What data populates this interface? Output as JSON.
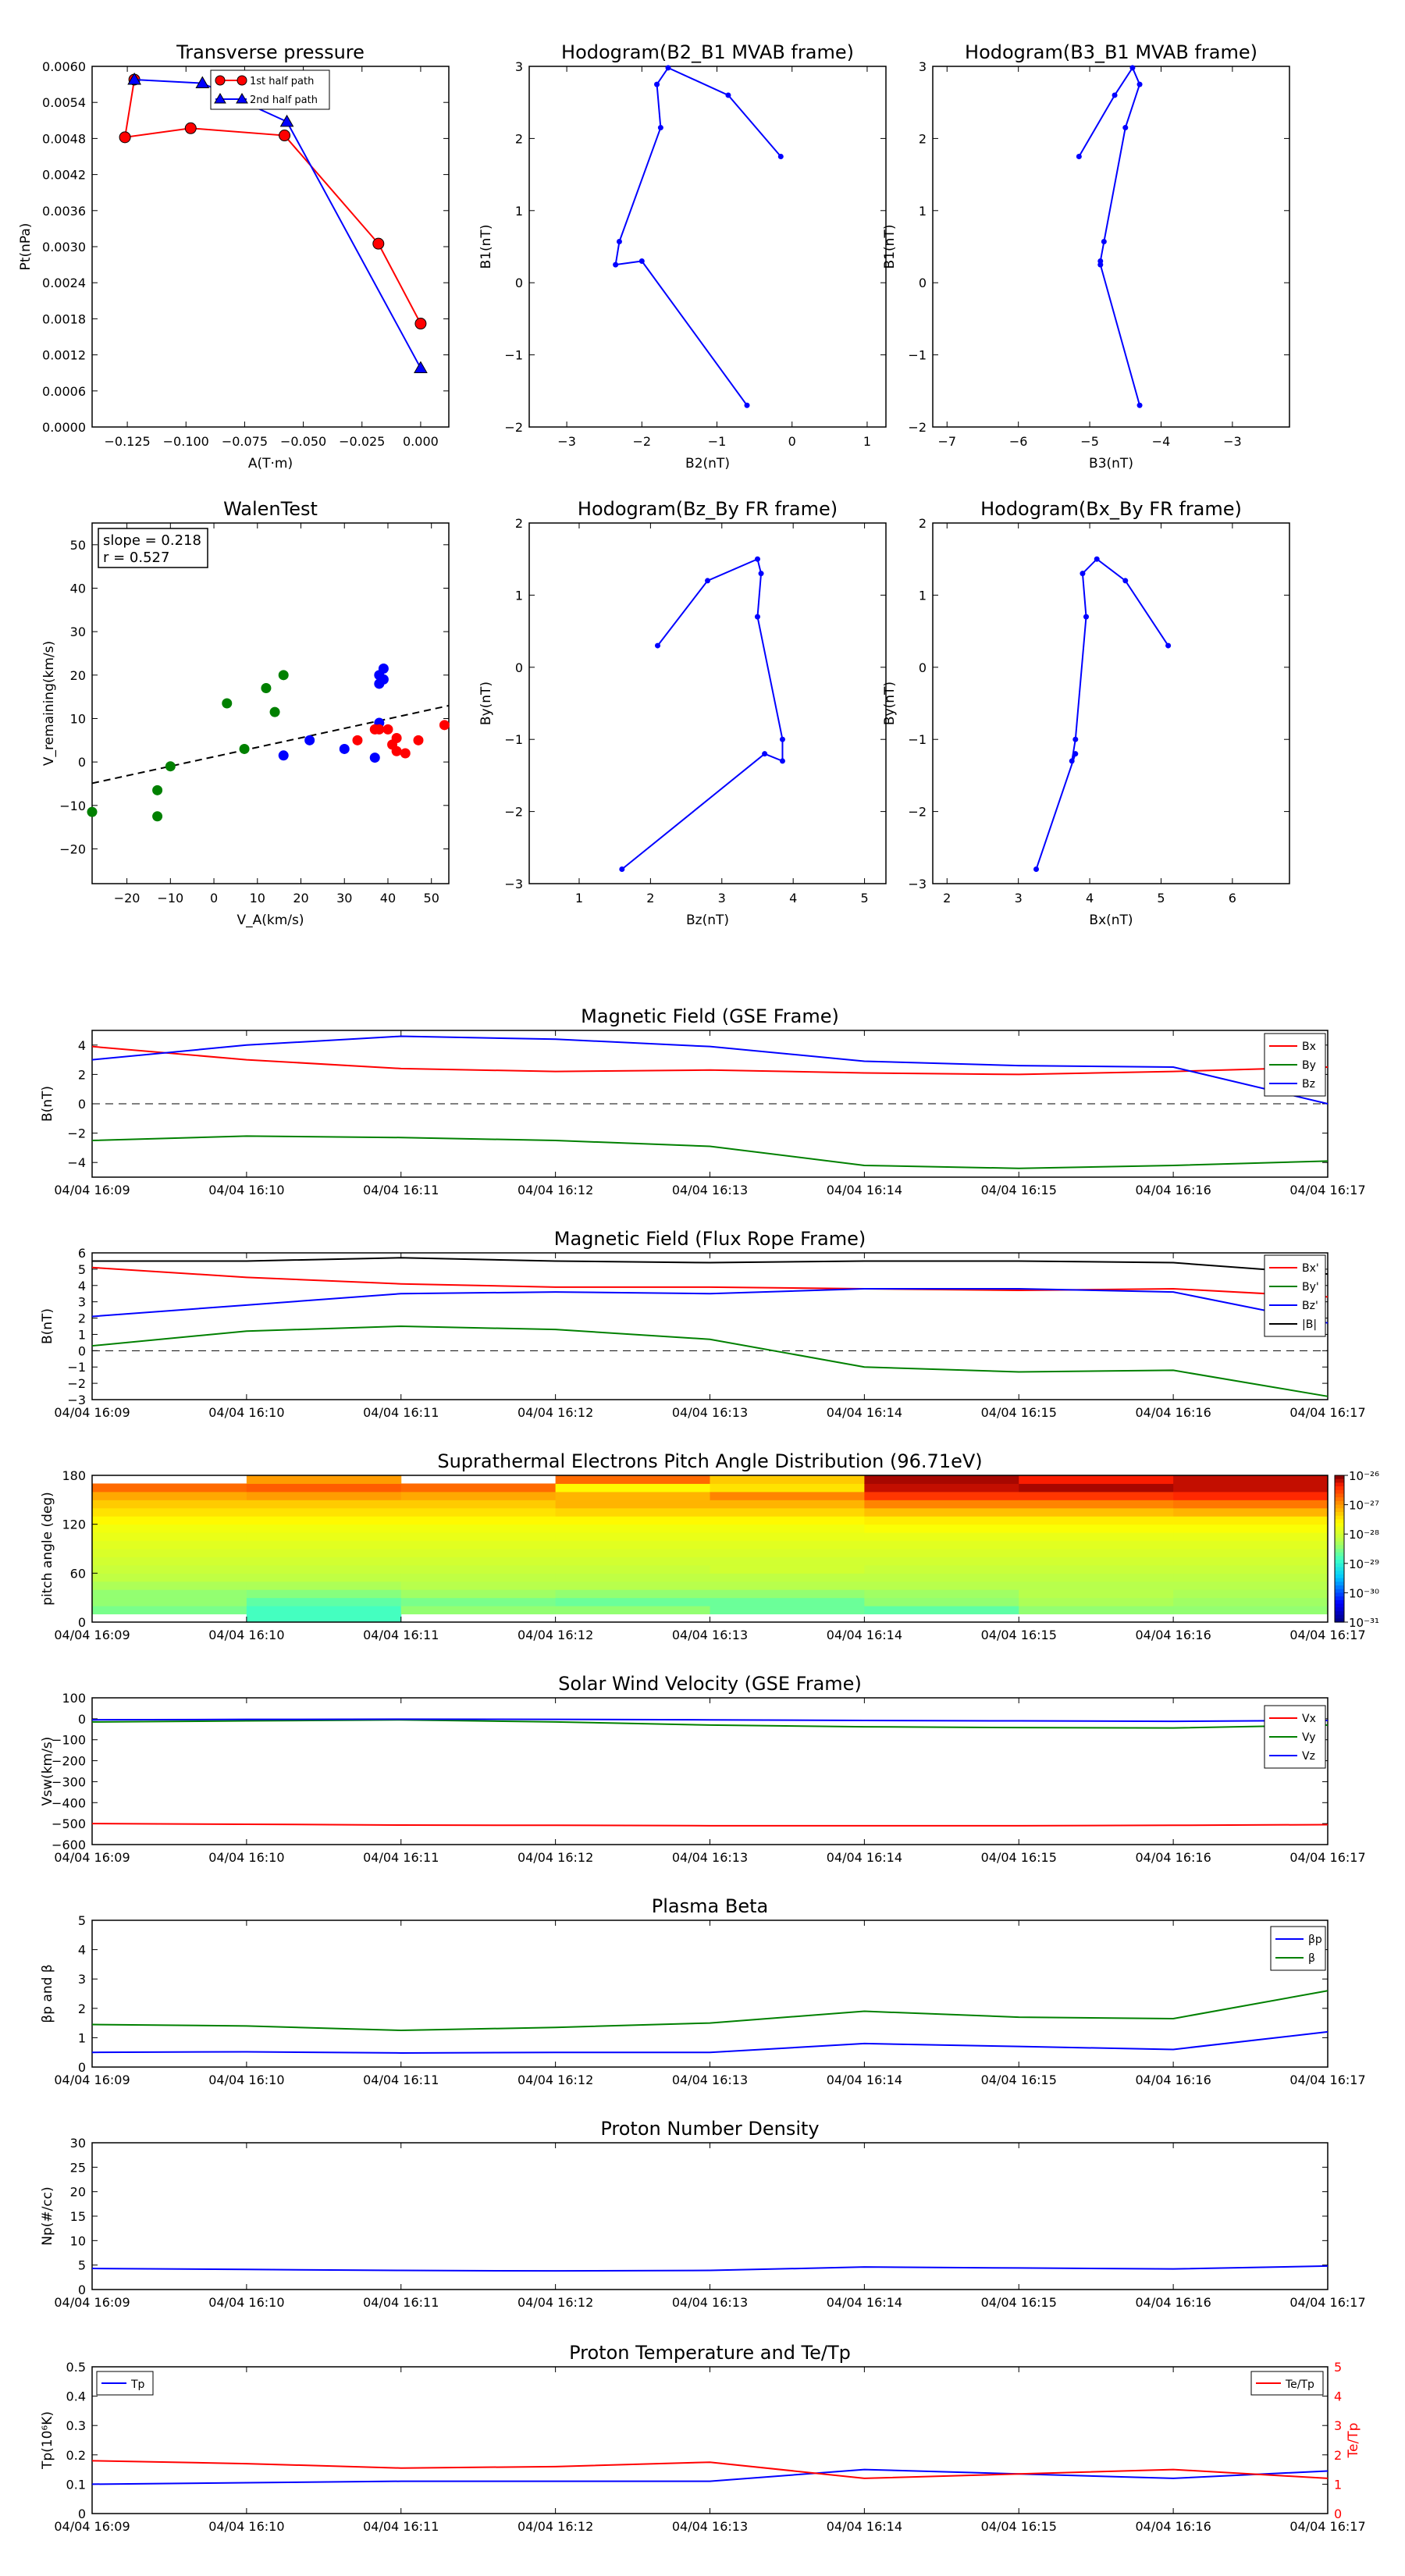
{
  "chart_data": [
    {
      "id": "tp",
      "type": "line",
      "title": "Transverse pressure",
      "xlabel": "A(T·m)",
      "ylabel": "Pt(nPa)",
      "xlim": [
        -0.14,
        0.012
      ],
      "ylim": [
        0,
        0.006
      ],
      "xticks": [
        -0.125,
        -0.1,
        -0.075,
        -0.05,
        -0.025,
        0.0
      ],
      "xtick_labels": [
        "−0.125",
        "−0.100",
        "−0.075",
        "−0.050",
        "−0.025",
        "0.000"
      ],
      "yticks": [
        0,
        0.0006,
        0.0012,
        0.0018,
        0.0024,
        0.003,
        0.0036,
        0.0042,
        0.0048,
        0.0054,
        0.006
      ],
      "ytick_labels": [
        "0.0000",
        "0.0006",
        "0.0012",
        "0.0018",
        "0.0024",
        "0.0030",
        "0.0036",
        "0.0042",
        "0.0048",
        "0.0054",
        "0.0060"
      ],
      "legend": "top-center",
      "series": [
        {
          "name": "1st half path",
          "color": "#ff0000",
          "marker": "circle",
          "x": [
            0.0,
            -0.018,
            -0.058,
            -0.098,
            -0.126,
            -0.122
          ],
          "y": [
            0.00172,
            0.00305,
            0.00485,
            0.00497,
            0.00482,
            0.00578
          ]
        },
        {
          "name": "2nd half path",
          "color": "#0000ff",
          "marker": "triangle",
          "x": [
            -0.122,
            -0.093,
            -0.057,
            0.0
          ],
          "y": [
            0.00578,
            0.00572,
            0.00508,
            0.00098
          ]
        }
      ]
    },
    {
      "id": "h1",
      "type": "line",
      "title": "Hodogram(B2_B1 MVAB frame)",
      "xlabel": "B2(nT)",
      "ylabel": "B1(nT)",
      "xlim": [
        -3.5,
        1.25
      ],
      "ylim": [
        -2,
        3
      ],
      "xticks": [
        -3,
        -2,
        -1,
        0,
        1
      ],
      "yticks": [
        -2,
        -1,
        0,
        1,
        2,
        3
      ],
      "color": "#0000ff",
      "x": [
        -0.6,
        -2.0,
        -2.35,
        -2.3,
        -1.75,
        -1.8,
        -1.65,
        -0.85,
        -0.15
      ],
      "y": [
        -1.7,
        0.3,
        0.25,
        0.57,
        2.15,
        2.75,
        2.98,
        2.6,
        1.75
      ]
    },
    {
      "id": "h2",
      "type": "line",
      "title": "Hodogram(B3_B1 MVAB frame)",
      "xlabel": "B3(nT)",
      "ylabel": "B1(nT)",
      "xlim": [
        -7.2,
        -2.2
      ],
      "ylim": [
        -2,
        3
      ],
      "xticks": [
        -7,
        -6,
        -5,
        -4,
        -3
      ],
      "yticks": [
        -2,
        -1,
        0,
        1,
        2,
        3
      ],
      "color": "#0000ff",
      "x": [
        -4.3,
        -4.85,
        -4.85,
        -4.8,
        -4.5,
        -4.3,
        -4.4,
        -4.65,
        -5.15
      ],
      "y": [
        -1.7,
        0.25,
        0.3,
        0.57,
        2.15,
        2.75,
        2.98,
        2.6,
        1.75
      ]
    },
    {
      "id": "walen",
      "type": "scatter",
      "title": "WalenTest",
      "xlabel": "V_A(km/s)",
      "ylabel": "V_remaining(km/s)",
      "xlim": [
        -28,
        54
      ],
      "ylim": [
        -28,
        55
      ],
      "xticks": [
        -20,
        -10,
        0,
        10,
        20,
        30,
        40,
        50
      ],
      "yticks": [
        -20,
        -10,
        0,
        10,
        20,
        30,
        40,
        50
      ],
      "annotation": [
        "slope = 0.218",
        "r = 0.527"
      ],
      "fit": {
        "slope": 0.218,
        "intercept": 1.2
      },
      "series": [
        {
          "color": "#008000",
          "x": [
            -28,
            -13,
            -13,
            -10,
            3,
            7,
            12,
            14,
            16
          ],
          "y": [
            -11.5,
            -12.5,
            -6.5,
            -1,
            13.5,
            3,
            17,
            11.5,
            20
          ]
        },
        {
          "color": "#0000ff",
          "x": [
            16,
            22,
            30,
            37,
            38,
            38,
            38,
            39,
            39
          ],
          "y": [
            1.5,
            5,
            3,
            1,
            9,
            18,
            20,
            21.5,
            19
          ]
        },
        {
          "color": "#ff0000",
          "x": [
            33,
            37,
            38,
            40,
            41,
            42,
            42,
            44,
            47,
            53
          ],
          "y": [
            5,
            7.5,
            7.5,
            7.5,
            4,
            2.5,
            5.5,
            2,
            5,
            8.5
          ]
        }
      ]
    },
    {
      "id": "h3",
      "type": "line",
      "title": "Hodogram(Bz_By FR frame)",
      "xlabel": "Bz(nT)",
      "ylabel": "By(nT)",
      "xlim": [
        0.3,
        5.3
      ],
      "ylim": [
        -3,
        2
      ],
      "xticks": [
        1,
        2,
        3,
        4,
        5
      ],
      "yticks": [
        -3,
        -2,
        -1,
        0,
        1,
        2
      ],
      "color": "#0000ff",
      "x": [
        1.6,
        3.6,
        3.85,
        3.85,
        3.5,
        3.55,
        3.5,
        2.8,
        2.1
      ],
      "y": [
        -2.8,
        -1.2,
        -1.3,
        -1.0,
        0.7,
        1.3,
        1.5,
        1.2,
        0.3
      ]
    },
    {
      "id": "h4",
      "type": "line",
      "title": "Hodogram(Bx_By FR frame)",
      "xlabel": "Bx(nT)",
      "ylabel": "By(nT)",
      "xlim": [
        1.8,
        6.8
      ],
      "ylim": [
        -3,
        2
      ],
      "xticks": [
        2,
        3,
        4,
        5,
        6
      ],
      "yticks": [
        -3,
        -2,
        -1,
        0,
        1,
        2
      ],
      "color": "#0000ff",
      "x": [
        3.25,
        3.8,
        3.75,
        3.8,
        3.95,
        3.9,
        4.1,
        4.5,
        5.1
      ],
      "y": [
        -2.8,
        -1.2,
        -1.3,
        -1.0,
        0.7,
        1.3,
        1.5,
        1.2,
        0.3
      ]
    },
    {
      "id": "bgse",
      "type": "line",
      "title": "Magnetic Field (GSE Frame)",
      "ylabel": "B(nT)",
      "ylim": [
        -5,
        5
      ],
      "yticks": [
        -4,
        -2,
        0,
        2,
        4
      ],
      "zero_line": true,
      "legend": "top-right",
      "series": [
        {
          "name": "Bx",
          "color": "#ff0000",
          "values": [
            3.9,
            3.0,
            2.4,
            2.2,
            2.3,
            2.1,
            2.0,
            2.2,
            2.5
          ]
        },
        {
          "name": "By",
          "color": "#008000",
          "values": [
            -2.5,
            -2.2,
            -2.3,
            -2.5,
            -2.9,
            -4.2,
            -4.4,
            -4.2,
            -3.9
          ]
        },
        {
          "name": "Bz",
          "color": "#0000ff",
          "values": [
            3.0,
            4.0,
            4.6,
            4.4,
            3.9,
            2.9,
            2.6,
            2.5,
            0.0
          ]
        }
      ]
    },
    {
      "id": "bfr",
      "type": "line",
      "title": "Magnetic Field (Flux Rope Frame)",
      "ylabel": "B(nT)",
      "ylim": [
        -3,
        6
      ],
      "yticks": [
        -3,
        -2,
        -1,
        0,
        1,
        2,
        3,
        4,
        5,
        6
      ],
      "zero_line": true,
      "legend": "top-right",
      "series": [
        {
          "name": "Bx'",
          "color": "#ff0000",
          "values": [
            5.1,
            4.5,
            4.1,
            3.9,
            3.9,
            3.8,
            3.7,
            3.8,
            3.3
          ]
        },
        {
          "name": "By'",
          "color": "#008000",
          "values": [
            0.3,
            1.2,
            1.5,
            1.3,
            0.7,
            -1.0,
            -1.3,
            -1.2,
            -2.8
          ]
        },
        {
          "name": "Bz'",
          "color": "#0000ff",
          "values": [
            2.1,
            2.8,
            3.5,
            3.6,
            3.5,
            3.8,
            3.8,
            3.6,
            1.7
          ]
        },
        {
          "name": "|B|",
          "color": "#000000",
          "values": [
            5.5,
            5.5,
            5.7,
            5.5,
            5.4,
            5.5,
            5.5,
            5.4,
            4.7
          ]
        }
      ]
    },
    {
      "id": "pad",
      "type": "heatmap",
      "title": "Suprathermal Electrons Pitch Angle Distribution (96.71eV)",
      "ylabel": "pitch angle (deg)",
      "ylim": [
        0,
        180
      ],
      "yticks": [
        0,
        60,
        120,
        180
      ],
      "colorbar_ticks": [
        "10⁻²⁶",
        "10⁻²⁷",
        "10⁻²⁸",
        "10⁻²⁹",
        "10⁻³⁰",
        "10⁻³¹"
      ],
      "bins": [
        0,
        10,
        20,
        30,
        40,
        50,
        60,
        70,
        80,
        90,
        100,
        110,
        120,
        130,
        140,
        150,
        160,
        170,
        180
      ],
      "cells": [
        [
          -1,
          3.4,
          3.6,
          3.6,
          3.8,
          4.0,
          4.1,
          4.2,
          4.3,
          4.4,
          4.5,
          4.6,
          4.8,
          5.0,
          5.2,
          5.5,
          6.0,
          -1
        ],
        [
          3.0,
          3.0,
          3.2,
          3.5,
          3.8,
          4.0,
          4.1,
          4.2,
          4.3,
          4.4,
          4.5,
          4.6,
          4.8,
          5.0,
          5.2,
          5.6,
          6.1,
          5.6
        ],
        [
          -1,
          3.6,
          3.4,
          3.7,
          3.9,
          4.0,
          4.1,
          4.2,
          4.3,
          4.4,
          4.5,
          4.6,
          4.8,
          5.0,
          5.2,
          5.5,
          6.0,
          -1
        ],
        [
          -1,
          3.6,
          3.3,
          3.6,
          3.9,
          4.0,
          4.1,
          4.2,
          4.3,
          4.4,
          4.5,
          4.6,
          4.8,
          5.1,
          5.4,
          5.4,
          4.8,
          6.0
        ],
        [
          -1,
          3.3,
          3.3,
          3.6,
          3.9,
          4.0,
          4.2,
          4.2,
          4.3,
          4.4,
          4.5,
          4.6,
          4.8,
          5.1,
          5.4,
          5.8,
          5.0,
          5.2
        ],
        [
          -1,
          3.2,
          3.6,
          3.7,
          3.9,
          4.0,
          4.1,
          4.2,
          4.3,
          4.4,
          4.5,
          4.7,
          4.9,
          5.3,
          5.8,
          6.4,
          6.8,
          6.9
        ],
        [
          -1,
          3.6,
          3.8,
          3.9,
          3.9,
          4.0,
          4.1,
          4.2,
          4.3,
          4.4,
          4.5,
          4.7,
          4.9,
          5.3,
          5.8,
          6.4,
          6.9,
          6.6
        ],
        [
          -1,
          3.6,
          3.7,
          3.8,
          3.9,
          4.0,
          4.1,
          4.2,
          4.3,
          4.4,
          4.5,
          4.7,
          4.9,
          5.4,
          5.9,
          6.5,
          6.8,
          6.8
        ]
      ]
    },
    {
      "id": "vsw",
      "type": "line",
      "title": "Solar Wind Velocity (GSE Frame)",
      "ylabel": "Vsw(km/s)",
      "ylim": [
        -600,
        100
      ],
      "yticks": [
        -600,
        -500,
        -400,
        -300,
        -200,
        -100,
        0,
        100
      ],
      "legend": "top-right",
      "series": [
        {
          "name": "Vx",
          "color": "#ff0000",
          "values": [
            -500,
            -503,
            -507,
            -508,
            -510,
            -510,
            -510,
            -508,
            -505
          ]
        },
        {
          "name": "Vy",
          "color": "#008000",
          "values": [
            -15,
            -10,
            -5,
            -15,
            -30,
            -38,
            -42,
            -44,
            -30
          ]
        },
        {
          "name": "Vz",
          "color": "#0000ff",
          "values": [
            -5,
            -3,
            -2,
            -3,
            -5,
            -8,
            -10,
            -12,
            -8
          ]
        }
      ]
    },
    {
      "id": "beta",
      "type": "line",
      "title": "Plasma Beta",
      "ylabel": "βp and β",
      "ylim": [
        0,
        5
      ],
      "yticks": [
        0,
        1,
        2,
        3,
        4,
        5
      ],
      "legend": "top-right",
      "series": [
        {
          "name": "βp",
          "color": "#0000ff",
          "values": [
            0.5,
            0.52,
            0.48,
            0.5,
            0.5,
            0.8,
            0.7,
            0.6,
            1.2
          ]
        },
        {
          "name": "β",
          "color": "#008000",
          "values": [
            1.45,
            1.4,
            1.25,
            1.35,
            1.5,
            1.9,
            1.7,
            1.65,
            2.6
          ]
        }
      ]
    },
    {
      "id": "np",
      "type": "line",
      "title": "Proton Number Density",
      "ylabel": "Np(#/cc)",
      "ylim": [
        0,
        30
      ],
      "yticks": [
        0,
        5,
        10,
        15,
        20,
        25,
        30
      ],
      "series": [
        {
          "color": "#0000ff",
          "values": [
            4.3,
            4.1,
            3.9,
            3.8,
            3.9,
            4.6,
            4.4,
            4.2,
            4.8
          ]
        }
      ]
    },
    {
      "id": "tp2",
      "type": "line",
      "title": "Proton Temperature and Te/Tp",
      "ylabel": "Tp(10⁶K)",
      "ylabel_right": "Te/Tp",
      "ylim": [
        0,
        0.5
      ],
      "ylim_right": [
        0,
        5
      ],
      "yticks": [
        0,
        0.1,
        0.2,
        0.3,
        0.4,
        0.5
      ],
      "yticks_right": [
        0,
        1,
        2,
        3,
        4,
        5
      ],
      "series": [
        {
          "name": "Tp",
          "color": "#0000ff",
          "axis": "left",
          "values": [
            0.1,
            0.105,
            0.11,
            0.11,
            0.11,
            0.15,
            0.135,
            0.12,
            0.145
          ]
        },
        {
          "name": "Te/Tp",
          "color": "#ff0000",
          "axis": "right",
          "values": [
            1.8,
            1.7,
            1.55,
            1.6,
            1.75,
            1.2,
            1.35,
            1.5,
            1.2
          ]
        }
      ]
    }
  ],
  "time_labels": [
    "04/04 16:09",
    "04/04 16:10",
    "04/04 16:11",
    "04/04 16:12",
    "04/04 16:13",
    "04/04 16:14",
    "04/04 16:15",
    "04/04 16:16",
    "04/04 16:17"
  ]
}
